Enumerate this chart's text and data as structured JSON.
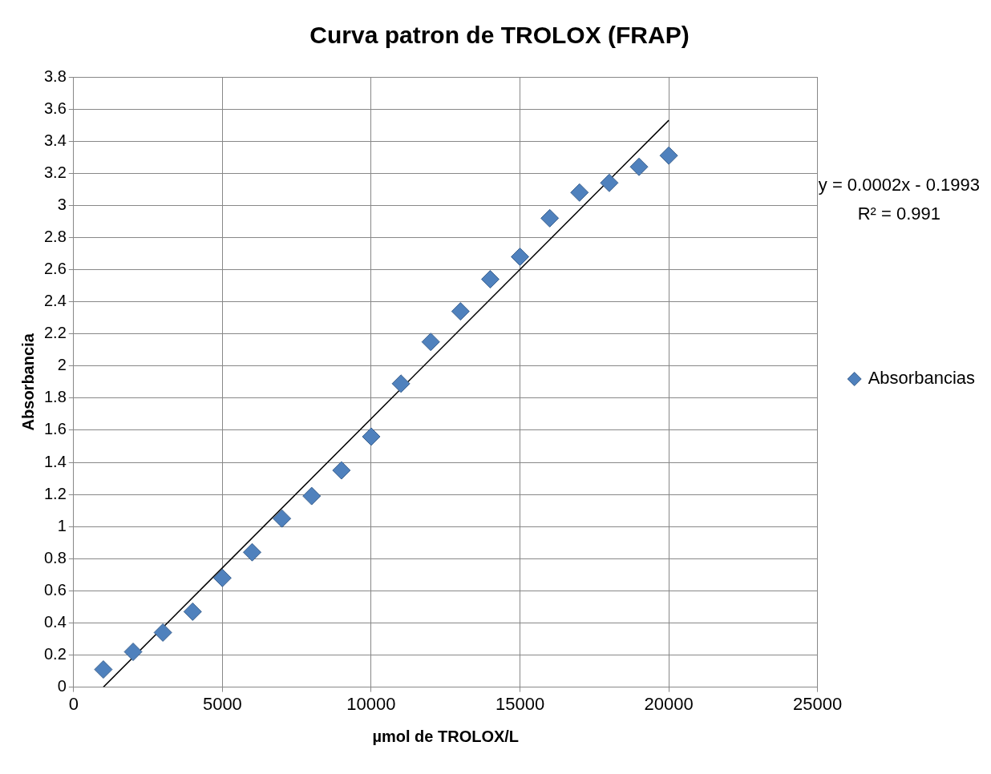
{
  "chart_data": {
    "type": "scatter",
    "title": "Curva patron de TROLOX (FRAP)",
    "xlabel": "µmol de TROLOX/L",
    "ylabel": "Absorbancia",
    "x": [
      1000,
      2000,
      3000,
      4000,
      5000,
      6000,
      7000,
      8000,
      9000,
      10000,
      11000,
      12000,
      13000,
      14000,
      15000,
      16000,
      17000,
      18000,
      19000,
      20000
    ],
    "series": [
      {
        "name": "Absorbancias",
        "color": "#4f81bd",
        "values": [
          0.11,
          0.22,
          0.34,
          0.47,
          0.68,
          0.84,
          1.05,
          1.19,
          1.35,
          1.56,
          1.89,
          2.15,
          2.34,
          2.54,
          2.68,
          2.92,
          3.08,
          3.14,
          3.24,
          3.31
        ]
      },
      {
        "type": "line",
        "color": "#000000",
        "x": [
          1000,
          20000
        ],
        "values": [
          0,
          3.53
        ],
        "marker": "none"
      }
    ],
    "annotations": [
      "y = 0.0002x - 0.1993",
      "R² = 0.991"
    ],
    "xlim": [
      0,
      25000
    ],
    "xticks": [
      0,
      5000,
      10000,
      15000,
      20000,
      25000
    ],
    "ylim": [
      0,
      3.8
    ],
    "yticks": [
      0,
      0.2,
      0.4,
      0.6,
      0.8,
      1,
      1.2,
      1.4,
      1.6,
      1.8,
      2,
      2.2,
      2.4,
      2.6,
      2.8,
      3,
      3.2,
      3.4,
      3.6,
      3.8
    ],
    "grid": true,
    "legend": "right",
    "marker": "diamond"
  }
}
